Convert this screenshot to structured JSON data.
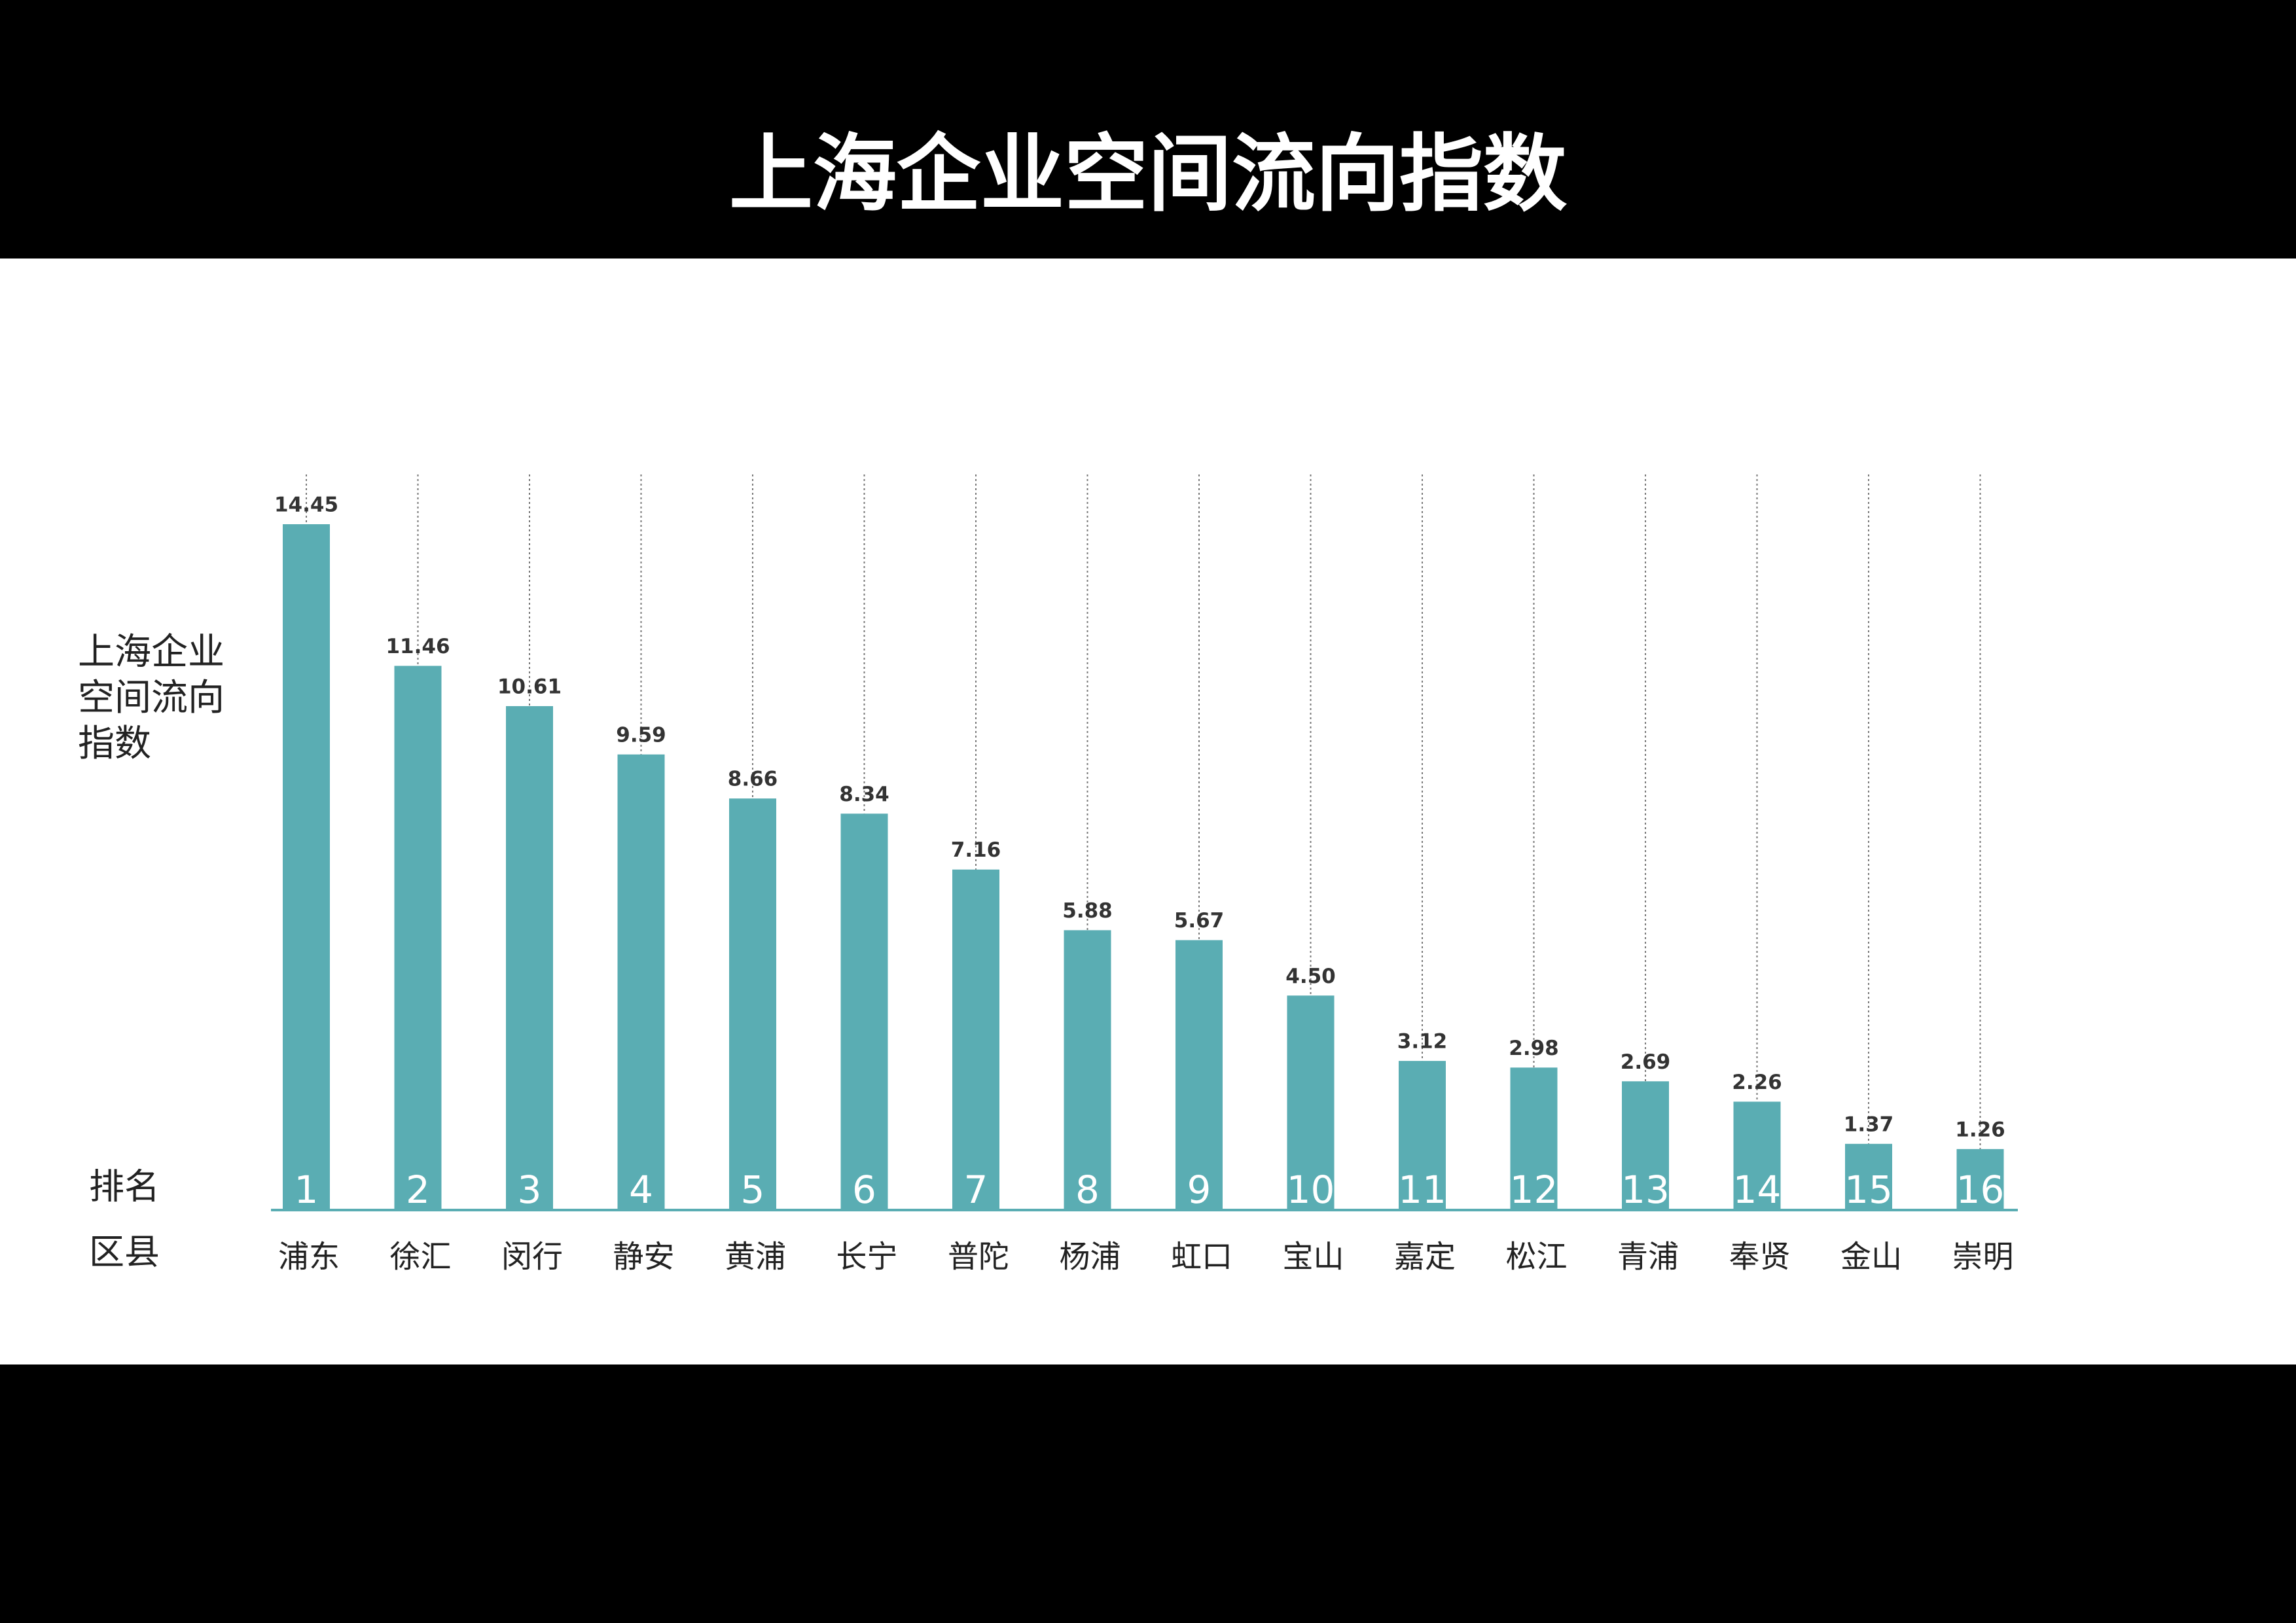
{
  "chart_data": {
    "type": "bar",
    "title": "上海企业空间流向指数",
    "ylabel": [
      "上海企业",
      "空间流向",
      "指数"
    ],
    "rank_row_label": "排名",
    "category_row_label": "区县",
    "categories": [
      "浦东",
      "徐汇",
      "闵行",
      "静安",
      "黄浦",
      "长宁",
      "普陀",
      "杨浦",
      "虹口",
      "宝山",
      "嘉定",
      "松江",
      "青浦",
      "奉贤",
      "金山",
      "崇明"
    ],
    "ranks": [
      1,
      2,
      3,
      4,
      5,
      6,
      7,
      8,
      9,
      10,
      11,
      12,
      13,
      14,
      15,
      16
    ],
    "values": [
      14.45,
      11.46,
      10.61,
      9.59,
      8.66,
      8.34,
      7.16,
      5.88,
      5.67,
      4.5,
      3.12,
      2.98,
      2.69,
      2.26,
      1.37,
      1.26
    ],
    "value_labels": [
      "14.45",
      "11.46",
      "10.61",
      "9.59",
      "8.66",
      "8.34",
      "7.16",
      "5.88",
      "5.67",
      "4.50",
      "3.12",
      "2.98",
      "2.69",
      "2.26",
      "1.37",
      "1.26"
    ],
    "color": "#5aadb3",
    "ylim": [
      0,
      15.5
    ]
  }
}
